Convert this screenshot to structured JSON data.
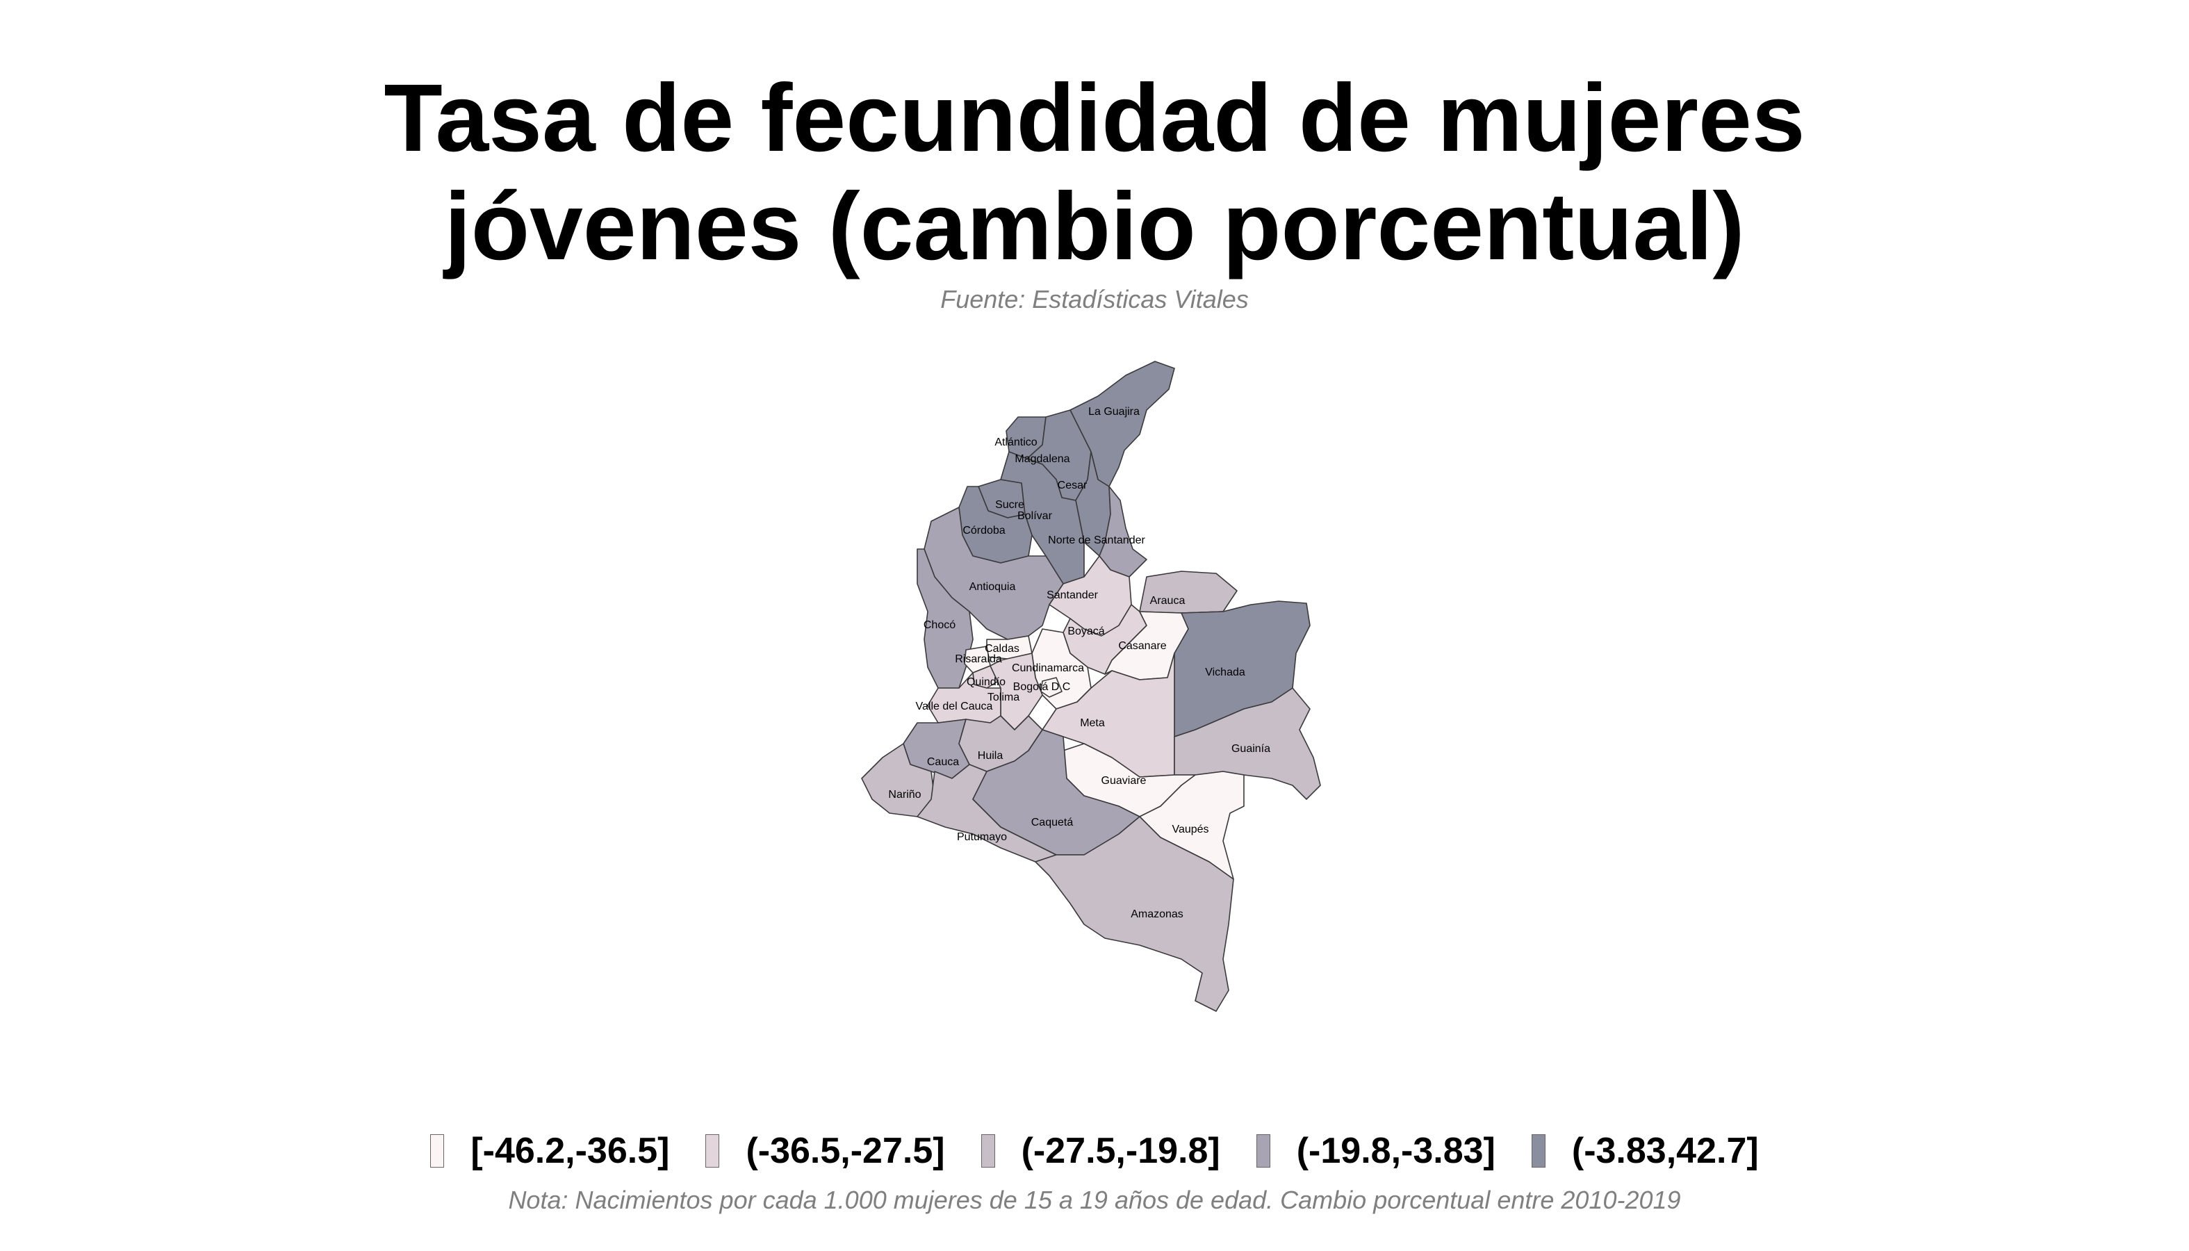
{
  "title": {
    "line1": "Tasa de fecundidad de mujeres",
    "line2": "jóvenes (cambio porcentual)"
  },
  "subtitle": "Fuente: Estadísticas Vitales",
  "note": "Nota: Nacimientos por cada 1.000 mujeres de 15 a 19 años de edad. Cambio porcentual entre 2010-2019",
  "legend": {
    "position": "bottom",
    "items": [
      {
        "label": "[-46.2,-36.5]",
        "color": "#fcf5f6"
      },
      {
        "label": "(-36.5,-27.5]",
        "color": "#e2d6dc"
      },
      {
        "label": "(-27.5,-19.8]",
        "color": "#c7bec8"
      },
      {
        "label": "(-19.8,-3.83]",
        "color": "#a8a4b3"
      },
      {
        "label": "(-3.83,42.7]",
        "color": "#8a8e9e"
      }
    ]
  },
  "map_data": {
    "type": "choropleth",
    "regions": [
      {
        "name": "La Guajira",
        "class": 4
      },
      {
        "name": "Atlántico",
        "class": 4
      },
      {
        "name": "Magdalena",
        "class": 4
      },
      {
        "name": "Cesar",
        "class": 4
      },
      {
        "name": "Sucre",
        "class": 4
      },
      {
        "name": "Bolívar",
        "class": 4
      },
      {
        "name": "Córdoba",
        "class": 4
      },
      {
        "name": "Norte de Santander",
        "class": 3
      },
      {
        "name": "Antioquia",
        "class": 3
      },
      {
        "name": "Santander",
        "class": 1
      },
      {
        "name": "Arauca",
        "class": 2
      },
      {
        "name": "Chocó",
        "class": 3
      },
      {
        "name": "Boyacá",
        "class": 1
      },
      {
        "name": "Caldas",
        "class": 0
      },
      {
        "name": "Risaralda",
        "class": 0
      },
      {
        "name": "Cundinamarca",
        "class": 0
      },
      {
        "name": "Casanare",
        "class": 0
      },
      {
        "name": "Vichada",
        "class": 4
      },
      {
        "name": "Quindío",
        "class": 1
      },
      {
        "name": "Bogotá D C",
        "class": 0
      },
      {
        "name": "Tolima",
        "class": 1
      },
      {
        "name": "Valle del Cauca",
        "class": 1
      },
      {
        "name": "Meta",
        "class": 1
      },
      {
        "name": "Guainía",
        "class": 2
      },
      {
        "name": "Cauca",
        "class": 3
      },
      {
        "name": "Huila",
        "class": 2
      },
      {
        "name": "Guaviare",
        "class": 0
      },
      {
        "name": "Nariño",
        "class": 2
      },
      {
        "name": "Putumayo",
        "class": 2
      },
      {
        "name": "Caquetá",
        "class": 3
      },
      {
        "name": "Vaupés",
        "class": 0
      },
      {
        "name": "Amazonas",
        "class": 2
      }
    ]
  }
}
